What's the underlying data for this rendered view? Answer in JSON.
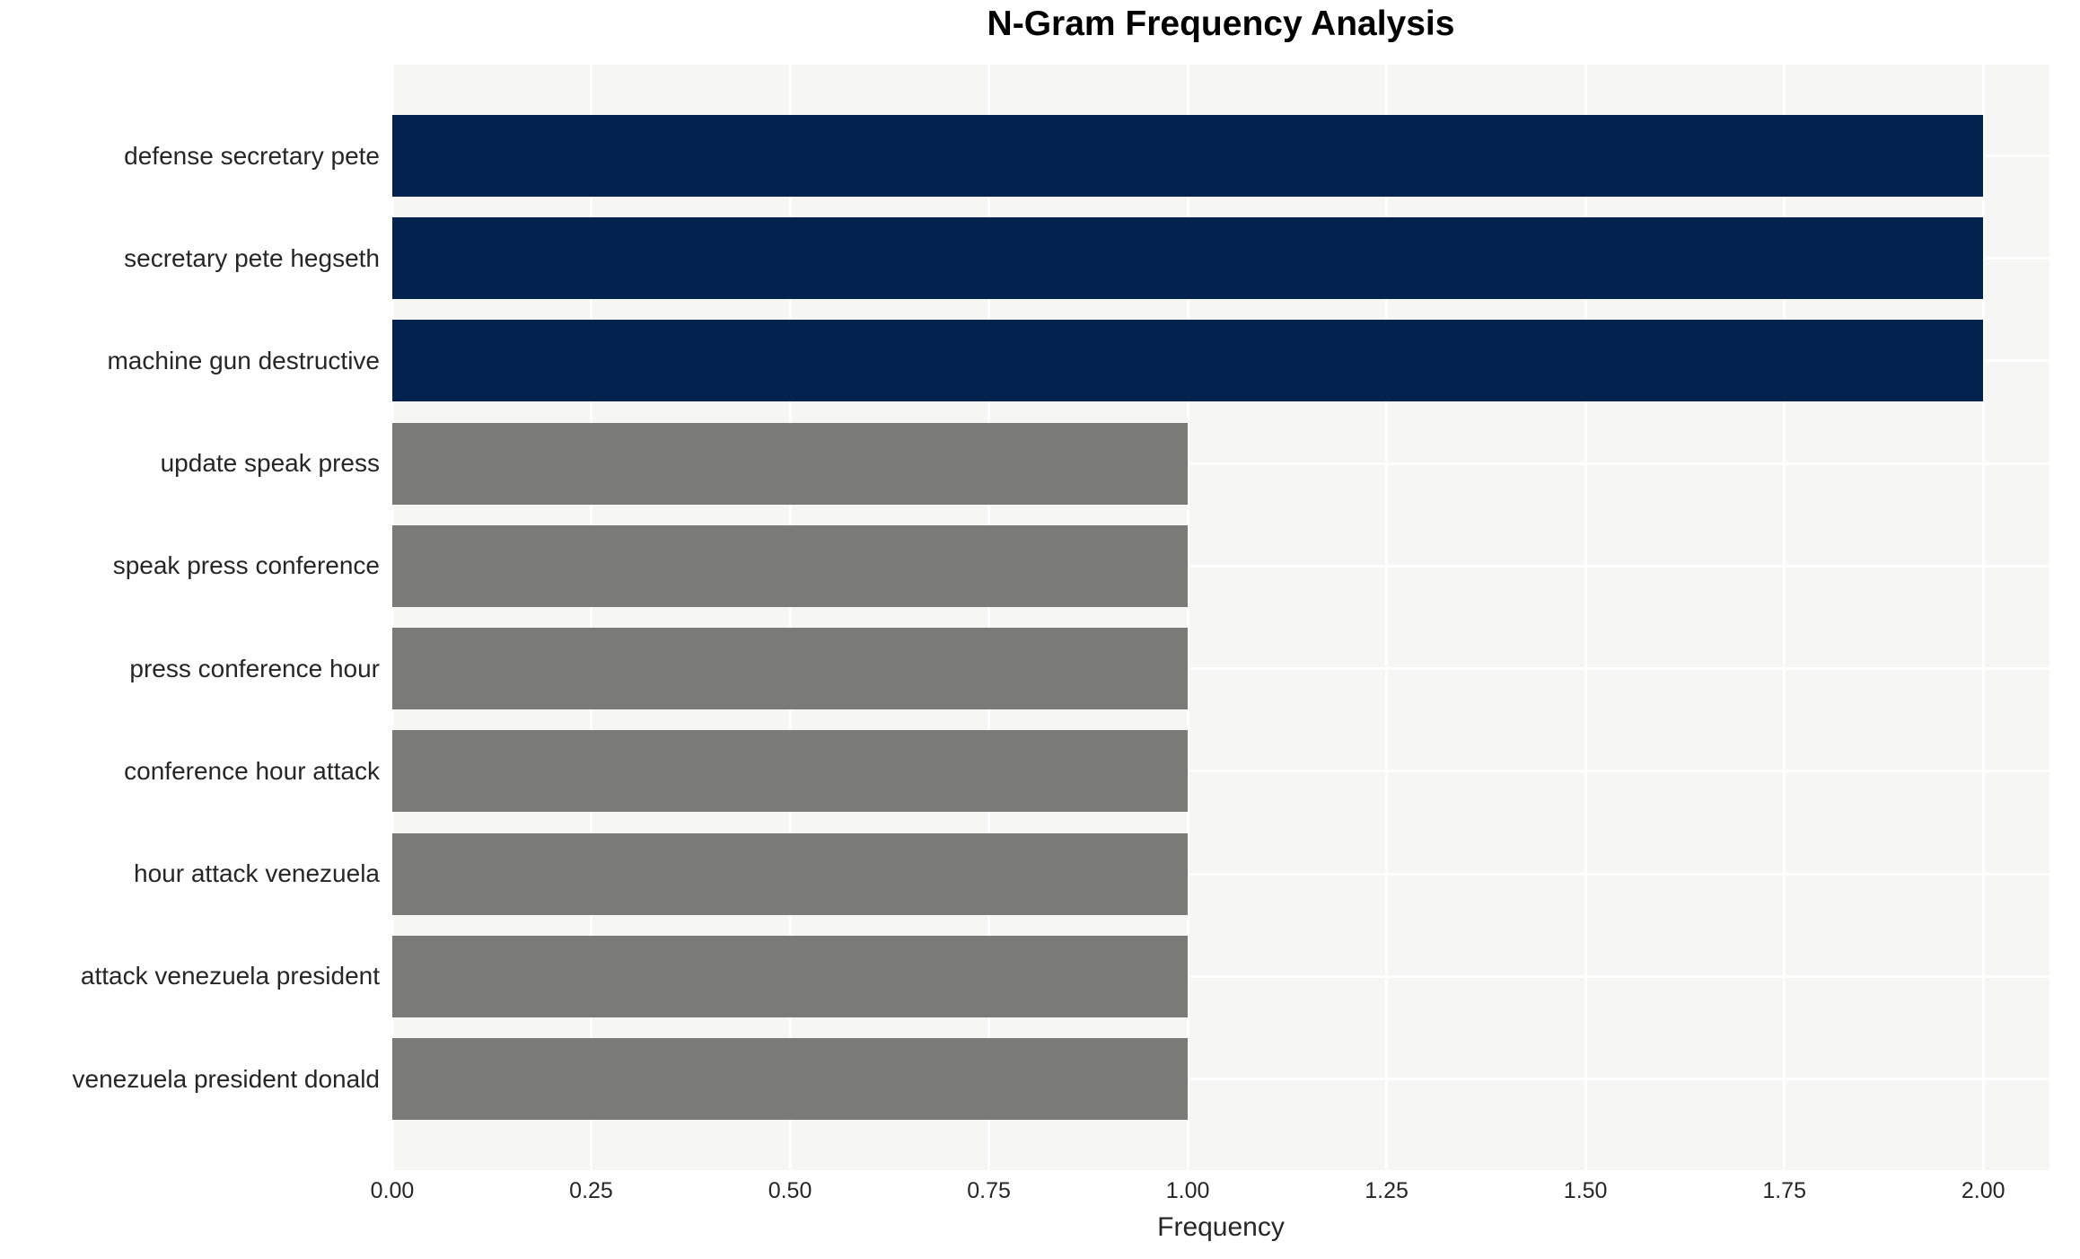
{
  "title": "N-Gram Frequency Analysis",
  "chart_data": {
    "type": "bar",
    "orientation": "horizontal",
    "title": "N-Gram Frequency Analysis",
    "xlabel": "Frequency",
    "ylabel": "",
    "categories": [
      "defense secretary pete",
      "secretary pete hegseth",
      "machine gun destructive",
      "update speak press",
      "speak press conference",
      "press conference hour",
      "conference hour attack",
      "hour attack venezuela",
      "attack venezuela president",
      "venezuela president donald"
    ],
    "values": [
      2,
      2,
      2,
      1,
      1,
      1,
      1,
      1,
      1,
      1
    ],
    "bar_colors": [
      "#03234e",
      "#03234e",
      "#03234e",
      "#7a7a77",
      "#7a7a77",
      "#7a7a77",
      "#7a7a77",
      "#7a7a77",
      "#7a7a77",
      "#7a7a77"
    ],
    "xticks": [
      0.0,
      0.25,
      0.5,
      0.75,
      1.0,
      1.25,
      1.5,
      1.75,
      2.0
    ],
    "xtick_labels": [
      "0.00",
      "0.25",
      "0.50",
      "0.75",
      "1.00",
      "1.25",
      "1.50",
      "1.75",
      "2.00"
    ],
    "xlim": [
      0,
      2.0833
    ],
    "grid": true,
    "legend": "none",
    "plot_background": "#f6f6f5",
    "grid_color": "#ffffff",
    "text_color": "#262626",
    "title_color": "#000000",
    "accent_navy": "#03234e",
    "accent_gray": "#7a7a77"
  }
}
